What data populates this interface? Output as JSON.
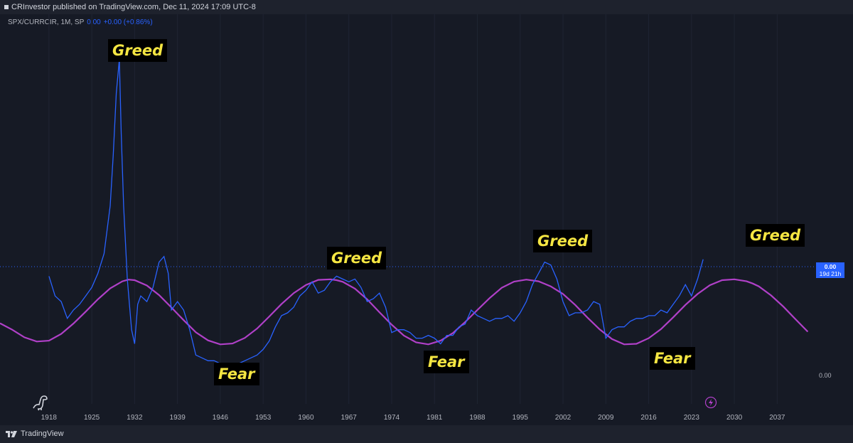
{
  "header": {
    "text": "CRInvestor published on TradingView.com, Dec 11, 2024 17:09 UTC-8"
  },
  "legend": {
    "symbol": "SPX/CURRCIR, 1M, SP",
    "value": "0.00",
    "change": "+0.00 (+0.86%)"
  },
  "annotations": [
    {
      "label": "Greed"
    },
    {
      "label": "Fear"
    },
    {
      "label": "Greed"
    },
    {
      "label": "Fear"
    },
    {
      "label": "Greed"
    },
    {
      "label": "Fear"
    },
    {
      "label": "Greed"
    }
  ],
  "price_tag": {
    "value": "0.00",
    "countdown": "19d 21h"
  },
  "axis_zero": "0.00",
  "footer": {
    "brand": "TradingView"
  },
  "colors": {
    "series": "#2962ff",
    "cycle": "#b040c8",
    "label": "#f5e642",
    "background": "#161a25"
  },
  "icons": [
    "tradingview-logo-icon",
    "dinosaur-icon",
    "lightning-icon"
  ],
  "chart_data": {
    "type": "line",
    "xlabel": "",
    "ylabel": "",
    "x_ticks": [
      "1918",
      "1925",
      "1932",
      "1939",
      "1946",
      "1953",
      "1960",
      "1967",
      "1974",
      "1981",
      "1988",
      "1995",
      "2002",
      "2009",
      "2016",
      "2023",
      "2030",
      "2037"
    ],
    "x_range": [
      1910,
      2043
    ],
    "y_range": [
      0,
      1.3
    ],
    "y_tick_labels": [
      "0.00"
    ],
    "series": [
      {
        "values_x": [
          1918,
          1919,
          1920,
          1921,
          1922,
          1923,
          1924,
          1925,
          1926,
          1927,
          1928,
          1928.5,
          1929,
          1929.5,
          1929.8,
          1930.2,
          1930.8,
          1931.5,
          1932,
          1932.5,
          1933,
          1934,
          1935,
          1936,
          1936.8,
          1937.5,
          1938,
          1939,
          1940,
          1941,
          1942,
          1943,
          1944,
          1945,
          1946,
          1947,
          1948,
          1949,
          1950,
          1951,
          1952,
          1953,
          1954,
          1955,
          1956,
          1957,
          1958,
          1959,
          1960,
          1961,
          1962,
          1963,
          1964,
          1965,
          1966,
          1967,
          1968,
          1969,
          1970,
          1971,
          1972,
          1973,
          1974,
          1975,
          1976,
          1977,
          1978,
          1979,
          1980,
          1981,
          1982,
          1983,
          1984,
          1985,
          1986,
          1987,
          1988,
          1989,
          1990,
          1991,
          1992,
          1993,
          1994,
          1995,
          1996,
          1997,
          1998,
          1999,
          2000,
          2001,
          2002,
          2003,
          2004,
          2005,
          2006,
          2007,
          2008,
          2009,
          2010,
          2011,
          2012,
          2013,
          2014,
          2015,
          2016,
          2017,
          2018,
          2019,
          2020,
          2021,
          2022,
          2023,
          2024,
          2024.9
        ],
        "values_y": [
          0.37,
          0.3,
          0.28,
          0.22,
          0.25,
          0.27,
          0.3,
          0.33,
          0.38,
          0.45,
          0.62,
          0.8,
          1.02,
          1.14,
          0.88,
          0.62,
          0.36,
          0.18,
          0.13,
          0.27,
          0.3,
          0.28,
          0.33,
          0.42,
          0.44,
          0.38,
          0.25,
          0.28,
          0.25,
          0.18,
          0.09,
          0.08,
          0.07,
          0.07,
          0.06,
          0.06,
          0.06,
          0.06,
          0.07,
          0.08,
          0.09,
          0.11,
          0.14,
          0.19,
          0.23,
          0.24,
          0.26,
          0.3,
          0.32,
          0.35,
          0.31,
          0.32,
          0.35,
          0.37,
          0.36,
          0.35,
          0.36,
          0.33,
          0.28,
          0.29,
          0.31,
          0.26,
          0.17,
          0.18,
          0.18,
          0.17,
          0.15,
          0.15,
          0.16,
          0.15,
          0.13,
          0.16,
          0.16,
          0.19,
          0.2,
          0.25,
          0.23,
          0.22,
          0.21,
          0.22,
          0.22,
          0.23,
          0.21,
          0.24,
          0.28,
          0.34,
          0.38,
          0.42,
          0.41,
          0.36,
          0.28,
          0.23,
          0.24,
          0.24,
          0.25,
          0.28,
          0.27,
          0.15,
          0.18,
          0.19,
          0.19,
          0.21,
          0.22,
          0.22,
          0.23,
          0.23,
          0.25,
          0.24,
          0.27,
          0.3,
          0.34,
          0.3,
          0.36,
          0.43
        ]
      },
      {
        "values_x": [
          1910,
          1912,
          1914,
          1916,
          1918,
          1920,
          1922,
          1924,
          1926,
          1928,
          1930,
          1931,
          1932,
          1934,
          1936,
          1938,
          1940,
          1942,
          1944,
          1946,
          1948,
          1950,
          1952,
          1954,
          1956,
          1958,
          1960,
          1962,
          1964,
          1965,
          1966,
          1968,
          1970,
          1972,
          1974,
          1976,
          1978,
          1980,
          1982,
          1984,
          1986,
          1988,
          1990,
          1992,
          1994,
          1996,
          1998,
          1999,
          2000,
          2002,
          2004,
          2006,
          2008,
          2010,
          2012,
          2014,
          2016,
          2018,
          2020,
          2022,
          2024,
          2026,
          2028,
          2030,
          2032,
          2033,
          2034,
          2036,
          2038,
          2040,
          2042
        ],
        "values_y": [
          0.203,
          0.18,
          0.153,
          0.138,
          0.141,
          0.165,
          0.202,
          0.244,
          0.288,
          0.327,
          0.352,
          0.358,
          0.356,
          0.337,
          0.303,
          0.259,
          0.214,
          0.171,
          0.142,
          0.128,
          0.131,
          0.151,
          0.184,
          0.227,
          0.271,
          0.31,
          0.339,
          0.357,
          0.359,
          0.356,
          0.35,
          0.326,
          0.288,
          0.242,
          0.198,
          0.159,
          0.135,
          0.128,
          0.141,
          0.168,
          0.207,
          0.25,
          0.292,
          0.329,
          0.351,
          0.358,
          0.352,
          0.343,
          0.334,
          0.307,
          0.268,
          0.223,
          0.181,
          0.147,
          0.128,
          0.13,
          0.15,
          0.182,
          0.224,
          0.268,
          0.307,
          0.338,
          0.356,
          0.359,
          0.352,
          0.344,
          0.334,
          0.302,
          0.262,
          0.217,
          0.173
        ]
      }
    ]
  }
}
